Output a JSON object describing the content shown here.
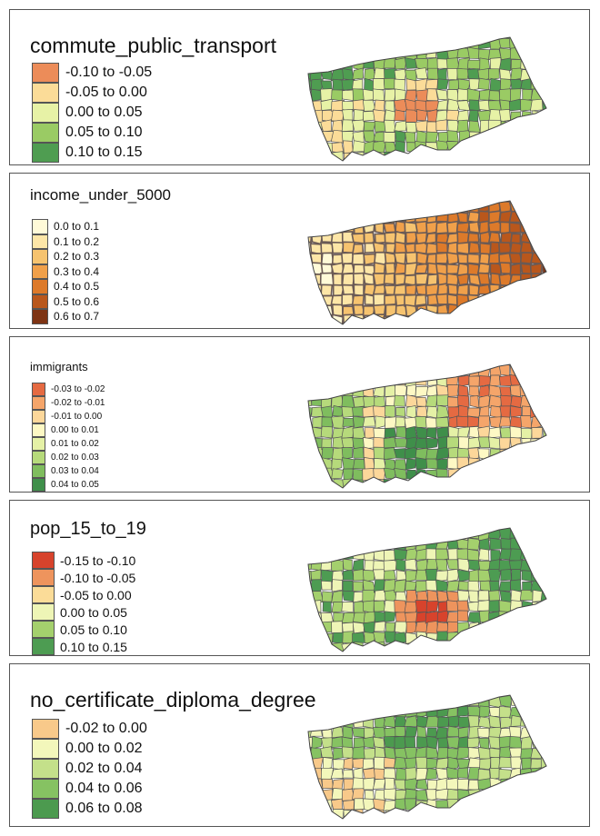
{
  "panels": [
    {
      "title": "commute_public_transport",
      "legend": [
        {
          "label": "-0.10 to -0.05",
          "color": "#ec8c59"
        },
        {
          "label": "-0.05 to 0.00",
          "color": "#fbdc98"
        },
        {
          "label": "0.00 to 0.05",
          "color": "#e7f2a6"
        },
        {
          "label": "0.05 to 0.10",
          "color": "#9acb64"
        },
        {
          "label": "0.10 to 0.15",
          "color": "#4f9d51"
        }
      ]
    },
    {
      "title": "income_under_5000",
      "legend": [
        {
          "label": "0.0 to 0.1",
          "color": "#fffad8"
        },
        {
          "label": "0.1 to 0.2",
          "color": "#fde6a7"
        },
        {
          "label": "0.2 to 0.3",
          "color": "#f6c36f"
        },
        {
          "label": "0.3 to 0.4",
          "color": "#f0a04a"
        },
        {
          "label": "0.4 to 0.5",
          "color": "#dd7a2a"
        },
        {
          "label": "0.5 to 0.6",
          "color": "#b9571c"
        },
        {
          "label": "0.6 to 0.7",
          "color": "#7e3414"
        }
      ]
    },
    {
      "title": "immigrants",
      "legend": [
        {
          "label": "-0.03 to -0.02",
          "color": "#e56a42"
        },
        {
          "label": "-0.02 to -0.01",
          "color": "#f5a56a"
        },
        {
          "label": "-0.01 to 0.00",
          "color": "#fcd79a"
        },
        {
          "label": "0.00 to 0.01",
          "color": "#fdf8c4"
        },
        {
          "label": "0.01 to 0.02",
          "color": "#e5f1a6"
        },
        {
          "label": "0.02 to 0.03",
          "color": "#b6da7b"
        },
        {
          "label": "0.03 to 0.04",
          "color": "#7fbd5e"
        },
        {
          "label": "0.04 to 0.05",
          "color": "#3f8f4a"
        }
      ]
    },
    {
      "title": "pop_15_to_19",
      "legend": [
        {
          "label": "-0.15 to -0.10",
          "color": "#d7432c"
        },
        {
          "label": "-0.10 to -0.05",
          "color": "#ee945d"
        },
        {
          "label": "-0.05 to 0.00",
          "color": "#fbdc98"
        },
        {
          "label": "0.00 to 0.05",
          "color": "#eef5b6"
        },
        {
          "label": "0.05 to 0.10",
          "color": "#a4d06d"
        },
        {
          "label": "0.10 to 0.15",
          "color": "#4d9c52"
        }
      ]
    },
    {
      "title": "no_certificate_diploma_degree",
      "legend": [
        {
          "label": "-0.02 to 0.00",
          "color": "#f8c98a"
        },
        {
          "label": "0.00 to 0.02",
          "color": "#f3f7bb"
        },
        {
          "label": "0.02 to 0.04",
          "color": "#c4e08a"
        },
        {
          "label": "0.04 to 0.06",
          "color": "#86c262"
        },
        {
          "label": "0.06 to 0.08",
          "color": "#4c9a4f"
        }
      ]
    }
  ]
}
